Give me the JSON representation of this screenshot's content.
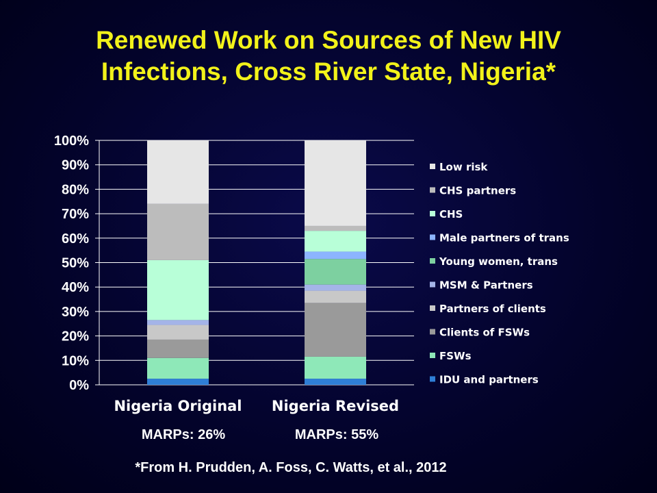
{
  "slide": {
    "title_line1": "Renewed Work on Sources of New HIV",
    "title_line2": "Infections, Cross River State, Nigeria*",
    "marps_original": "MARPs: 26%",
    "marps_revised": "MARPs: 55%",
    "source": "*From H. Prudden, A. Foss, C. Watts, et al., 2012"
  },
  "chart_data": {
    "type": "bar",
    "stacked": true,
    "categories": [
      "Nigeria Original",
      "Nigeria Revised"
    ],
    "ylim": [
      0,
      100
    ],
    "yticks": [
      "0%",
      "10%",
      "20%",
      "30%",
      "40%",
      "50%",
      "60%",
      "70%",
      "80%",
      "90%",
      "100%"
    ],
    "grid": true,
    "legend_position": "right",
    "series": [
      {
        "name": "IDU and partners",
        "color": "#2f7fd6",
        "values": [
          2.5,
          2.5
        ]
      },
      {
        "name": "FSWs",
        "color": "#8ee8b8",
        "values": [
          8.5,
          9
        ]
      },
      {
        "name": "Clients of FSWs",
        "color": "#9a9a9a",
        "values": [
          7.5,
          22
        ]
      },
      {
        "name": "Partners of clients",
        "color": "#c8c8c8",
        "values": [
          6,
          5
        ]
      },
      {
        "name": "MSM & Partners",
        "color": "#a4b4e8",
        "values": [
          2,
          2.5
        ]
      },
      {
        "name": "Young women, trans",
        "color": "#7dd0a0",
        "values": [
          0,
          10.5
        ]
      },
      {
        "name": "Male partners of trans",
        "color": "#8cb4ff",
        "values": [
          0,
          3
        ]
      },
      {
        "name": "CHS",
        "color": "#b8ffd8",
        "values": [
          24.5,
          8.5
        ]
      },
      {
        "name": "CHS partners",
        "color": "#bcbcbc",
        "values": [
          23,
          2
        ]
      },
      {
        "name": "Low risk",
        "color": "#e6e6e6",
        "values": [
          26,
          35
        ]
      }
    ]
  }
}
